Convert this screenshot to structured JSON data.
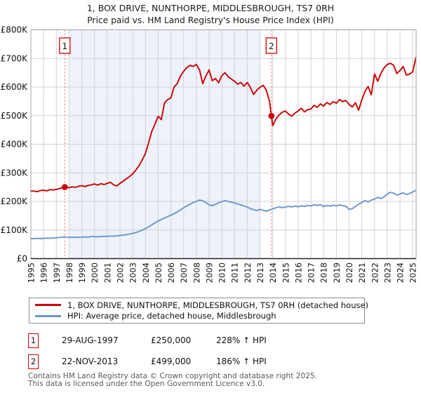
{
  "chart_data": {
    "type": "line",
    "title": "1, BOX DRIVE, NUNTHORPE, MIDDLESBROUGH, TS7 0RH",
    "subtitle": "Price paid vs. HM Land Registry's House Price Index (HPI)",
    "units": "GBP thousands",
    "x_start": 1995.0,
    "x_step_years": 0.25,
    "x_range": [
      1995,
      2025.3
    ],
    "y_range_gbp_thousands": [
      0,
      800
    ],
    "grid": true,
    "legend_position": "bottom",
    "x_ticks": [
      "1995",
      "1996",
      "1997",
      "1998",
      "1999",
      "2000",
      "2001",
      "2002",
      "2003",
      "2004",
      "2005",
      "2006",
      "2007",
      "2008",
      "2009",
      "2010",
      "2011",
      "2012",
      "2013",
      "2014",
      "2015",
      "2016",
      "2017",
      "2018",
      "2019",
      "2020",
      "2021",
      "2022",
      "2023",
      "2024",
      "2025"
    ],
    "y_ticks": [
      "£0",
      "£100K",
      "£200K",
      "£300K",
      "£400K",
      "£500K",
      "£600K",
      "£700K",
      "£800K"
    ],
    "shaded_region_years": [
      1998,
      2013
    ],
    "shaded_region_color": "#edf2fb",
    "gridline_color": "#d2d2d2",
    "dashed_line_color": "#f37c7c",
    "series": [
      {
        "name": "1, BOX DRIVE, NUNTHORPE, MIDDLESBROUGH, TS7 0RH (detached house)",
        "color": "#cc0000",
        "values": [
          237,
          236,
          234,
          238,
          239,
          237,
          241,
          240,
          242,
          245,
          248,
          251,
          248,
          251,
          249,
          253,
          255,
          252,
          256,
          258,
          261,
          257,
          262,
          259,
          263,
          267,
          258,
          254,
          263,
          271,
          279,
          287,
          296,
          310,
          325,
          345,
          368,
          405,
          445,
          470,
          498,
          486,
          545,
          556,
          562,
          600,
          612,
          638,
          655,
          668,
          676,
          672,
          679,
          660,
          612,
          638,
          660,
          622,
          630,
          615,
          640,
          650,
          636,
          628,
          620,
          610,
          616,
          603,
          616,
          598,
          574,
          589,
          599,
          606,
          589,
          550,
          465,
          488,
          502,
          512,
          516,
          505,
          498,
          509,
          516,
          526,
          513,
          521,
          523,
          536,
          529,
          541,
          533,
          546,
          539,
          549,
          543,
          556,
          549,
          553,
          539,
          530,
          545,
          519,
          555,
          585,
          602,
          573,
          646,
          620,
          648,
          667,
          679,
          683,
          676,
          647,
          658,
          672,
          642,
          645,
          654,
          703
        ]
      },
      {
        "name": "HPI: Average price, detached house, Middlesbrough",
        "color": "#6a96cb",
        "values": [
          70,
          70,
          71,
          70,
          71,
          72,
          71,
          72,
          73,
          74,
          75,
          76,
          74,
          75,
          74,
          75,
          75,
          76,
          75,
          77,
          77,
          76,
          78,
          77,
          78,
          79,
          78,
          80,
          81,
          82,
          84,
          86,
          88,
          91,
          95,
          100,
          105,
          111,
          118,
          125,
          132,
          137,
          142,
          147,
          152,
          157,
          163,
          170,
          178,
          184,
          190,
          196,
          200,
          205,
          202,
          196,
          188,
          185,
          190,
          195,
          199,
          203,
          200,
          197,
          195,
          191,
          188,
          184,
          180,
          175,
          171,
          168,
          172,
          169,
          166,
          170,
          174,
          178,
          181,
          178,
          180,
          183,
          180,
          184,
          181,
          185,
          182,
          186,
          184,
          188,
          186,
          189,
          182,
          186,
          183,
          187,
          184,
          188,
          185,
          183,
          172,
          175,
          182,
          190,
          196,
          203,
          198,
          205,
          208,
          214,
          210,
          216,
          226,
          232,
          229,
          222,
          226,
          230,
          224,
          228,
          233,
          239
        ]
      }
    ],
    "sale_markers": [
      {
        "label": "1",
        "x_year": 1997.66,
        "value_gbp_thousands": 250
      },
      {
        "label": "2",
        "x_year": 2013.9,
        "value_gbp_thousands": 499
      }
    ]
  },
  "legend": {
    "items": [
      {
        "label": "1, BOX DRIVE, NUNTHORPE, MIDDLESBROUGH, TS7 0RH (detached house)"
      },
      {
        "label": "HPI: Average price, detached house, Middlesbrough"
      }
    ]
  },
  "annotations": {
    "rows": [
      {
        "num": "1",
        "date": "29-AUG-1997",
        "price": "£250,000",
        "delta": "228% ↑ HPI"
      },
      {
        "num": "2",
        "date": "22-NOV-2013",
        "price": "£499,000",
        "delta": "186% ↑ HPI"
      }
    ]
  },
  "footer": {
    "line1": "Contains HM Land Registry data © Crown copyright and database right 2025.",
    "line2": "This data is licensed under the Open Government Licence v3.0."
  }
}
